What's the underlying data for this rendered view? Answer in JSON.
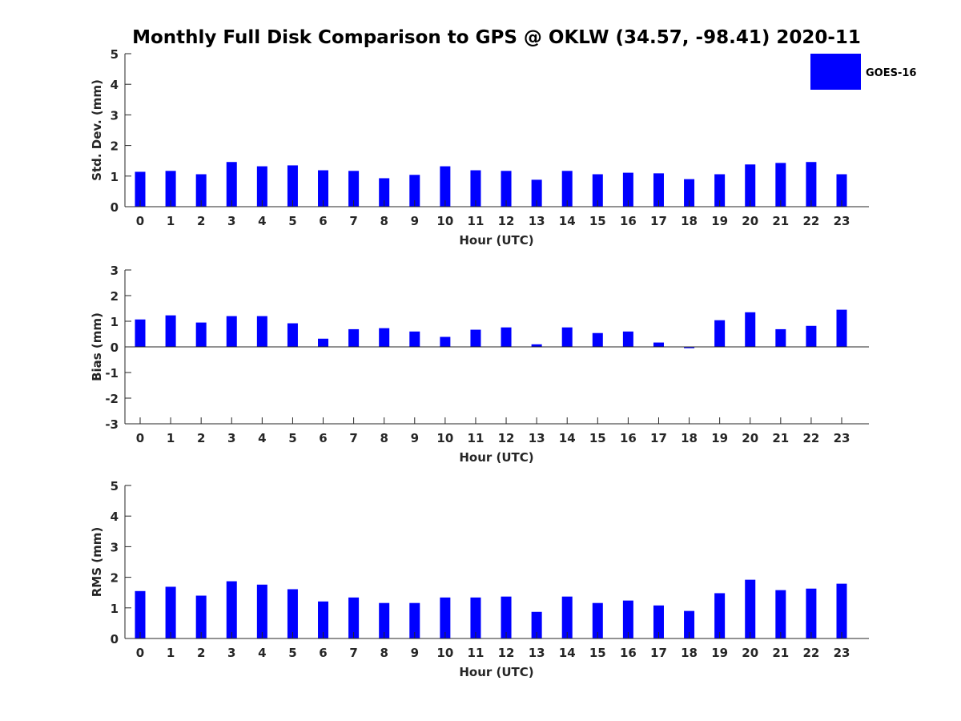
{
  "chart_data": {
    "title": "Monthly Full Disk Comparison to GPS @ OKLW (34.57, -98.41) 2020-11",
    "legend": {
      "entries": [
        "GOES-16"
      ],
      "placement": "top-right",
      "color": "#0000ff"
    },
    "bar_color": "#0000ff",
    "panels": [
      {
        "type": "bar",
        "xlabel": "Hour (UTC)",
        "ylabel": "Std. Dev. (mm)",
        "ylim": [
          0,
          5
        ],
        "yticks": [
          0,
          1,
          2,
          3,
          4,
          5
        ],
        "categories": [
          0,
          1,
          2,
          3,
          4,
          5,
          6,
          7,
          8,
          9,
          10,
          11,
          12,
          13,
          14,
          15,
          16,
          17,
          18,
          19,
          20,
          21,
          22,
          23
        ],
        "series": [
          {
            "name": "GOES-16",
            "values": [
              1.14,
              1.17,
              1.06,
              1.46,
              1.32,
              1.35,
              1.19,
              1.17,
              0.93,
              1.04,
              1.32,
              1.19,
              1.17,
              0.88,
              1.17,
              1.06,
              1.11,
              1.09,
              0.9,
              1.06,
              1.38,
              1.43,
              1.46,
              1.06
            ]
          }
        ]
      },
      {
        "type": "bar",
        "xlabel": "Hour (UTC)",
        "ylabel": "Bias (mm)",
        "ylim": [
          -3,
          3
        ],
        "yticks": [
          -3,
          -2,
          -1,
          0,
          1,
          2,
          3
        ],
        "categories": [
          0,
          1,
          2,
          3,
          4,
          5,
          6,
          7,
          8,
          9,
          10,
          11,
          12,
          13,
          14,
          15,
          16,
          17,
          18,
          19,
          20,
          21,
          22,
          23
        ],
        "series": [
          {
            "name": "GOES-16",
            "values": [
              1.07,
              1.23,
              0.95,
              1.2,
              1.2,
              0.92,
              0.32,
              0.69,
              0.73,
              0.6,
              0.39,
              0.67,
              0.76,
              0.1,
              0.76,
              0.54,
              0.6,
              0.17,
              -0.05,
              1.04,
              1.35,
              0.69,
              0.82,
              1.45
            ]
          }
        ]
      },
      {
        "type": "bar",
        "xlabel": "Hour (UTC)",
        "ylabel": "RMS (mm)",
        "ylim": [
          0,
          5
        ],
        "yticks": [
          0,
          1,
          2,
          3,
          4,
          5
        ],
        "categories": [
          0,
          1,
          2,
          3,
          4,
          5,
          6,
          7,
          8,
          9,
          10,
          11,
          12,
          13,
          14,
          15,
          16,
          17,
          18,
          19,
          20,
          21,
          22,
          23
        ],
        "series": [
          {
            "name": "GOES-16",
            "values": [
              1.55,
              1.69,
              1.4,
              1.87,
              1.76,
              1.61,
              1.21,
              1.34,
              1.16,
              1.16,
              1.34,
              1.34,
              1.37,
              0.87,
              1.37,
              1.16,
              1.24,
              1.08,
              0.9,
              1.48,
              1.92,
              1.58,
              1.63,
              1.79
            ]
          }
        ]
      }
    ]
  }
}
